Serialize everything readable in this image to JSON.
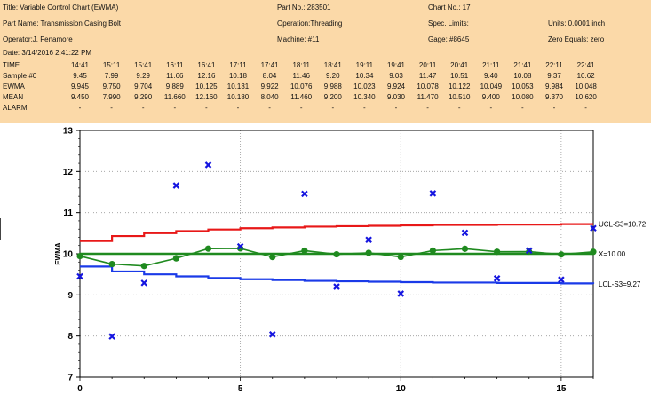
{
  "header": {
    "title": "Title: Variable Control Chart (EWMA)",
    "part_no": "Part No.: 283501",
    "chart_no": "Chart No.: 17",
    "part_name": "Part Name: Transmission Casing Bolt",
    "operation": "Operation:Threading",
    "spec_limits": "Spec. Limits:",
    "units": "Units: 0.0001 inch",
    "operator": "Operator:J. Fenamore",
    "machine": "Machine: #11",
    "gage": "Gage: #8645",
    "zero_equals": "Zero Equals: zero",
    "date": "Date: 3/14/2016 2:41:22 PM"
  },
  "table": {
    "row_labels": [
      "TIME",
      "Sample #0",
      "EWMA",
      "MEAN",
      "ALARM"
    ],
    "time": [
      "14:41",
      "15:11",
      "15:41",
      "16:11",
      "16:41",
      "17:11",
      "17:41",
      "18:11",
      "18:41",
      "19:11",
      "19:41",
      "20:11",
      "20:41",
      "21:11",
      "21:41",
      "22:11",
      "22:41"
    ],
    "sample": [
      "9.45",
      "7.99",
      "9.29",
      "11.66",
      "12.16",
      "10.18",
      "8.04",
      "11.46",
      "9.20",
      "10.34",
      "9.03",
      "11.47",
      "10.51",
      "9.40",
      "10.08",
      "9.37",
      "10.62"
    ],
    "ewma": [
      "9.945",
      "9.750",
      "9.704",
      "9.889",
      "10.125",
      "10.131",
      "9.922",
      "10.076",
      "9.988",
      "10.023",
      "9.924",
      "10.078",
      "10.122",
      "10.049",
      "10.053",
      "9.984",
      "10.048"
    ],
    "mean": [
      "9.450",
      "7.990",
      "9.290",
      "11.660",
      "12.160",
      "10.180",
      "8.040",
      "11.460",
      "9.200",
      "10.340",
      "9.030",
      "11.470",
      "10.510",
      "9.400",
      "10.080",
      "9.370",
      "10.620"
    ],
    "alarm": [
      "-",
      "-",
      "-",
      "-",
      "-",
      "-",
      "-",
      "-",
      "-",
      "-",
      "-",
      "-",
      "-",
      "-",
      "-",
      "-",
      "-"
    ]
  },
  "chart_data": {
    "type": "line",
    "ylabel": "EWMA",
    "xlabel": "",
    "xlim": [
      0,
      16
    ],
    "ylim": [
      7,
      13
    ],
    "x_ticks": [
      0,
      5,
      10,
      15
    ],
    "y_ticks": [
      7,
      8,
      9,
      10,
      11,
      12,
      13
    ],
    "grid": true,
    "x": [
      0,
      1,
      2,
      3,
      4,
      5,
      6,
      7,
      8,
      9,
      10,
      11,
      12,
      13,
      14,
      15,
      16
    ],
    "series": [
      {
        "name": "EWMA",
        "color": "#1f8a1f",
        "marker": "circle",
        "values": [
          9.945,
          9.75,
          9.704,
          9.889,
          10.125,
          10.131,
          9.922,
          10.076,
          9.988,
          10.023,
          9.924,
          10.078,
          10.122,
          10.049,
          10.053,
          9.984,
          10.048
        ]
      },
      {
        "name": "Sample",
        "color": "#1515e0",
        "marker": "x",
        "line": false,
        "values": [
          9.45,
          7.99,
          9.29,
          11.66,
          12.16,
          10.18,
          8.04,
          11.46,
          9.2,
          10.34,
          9.03,
          11.47,
          10.51,
          9.4,
          10.08,
          9.37,
          10.62
        ]
      },
      {
        "name": "UCL",
        "color": "#e81818",
        "step": true,
        "values": [
          10.31,
          10.43,
          10.5,
          10.55,
          10.59,
          10.62,
          10.64,
          10.66,
          10.67,
          10.68,
          10.69,
          10.7,
          10.7,
          10.71,
          10.71,
          10.72,
          10.72
        ]
      },
      {
        "name": "LCL",
        "color": "#1a3ae8",
        "step": true,
        "values": [
          9.69,
          9.57,
          9.5,
          9.45,
          9.41,
          9.38,
          9.36,
          9.34,
          9.33,
          9.32,
          9.31,
          9.3,
          9.3,
          9.29,
          9.29,
          9.28,
          9.27
        ]
      }
    ],
    "center_line": {
      "value": 10.0,
      "color": "#1f8a1f",
      "label": "X=10.00"
    },
    "ucl_label": "UCL-S3=10.72",
    "lcl_label": "LCL-S3=9.27"
  }
}
